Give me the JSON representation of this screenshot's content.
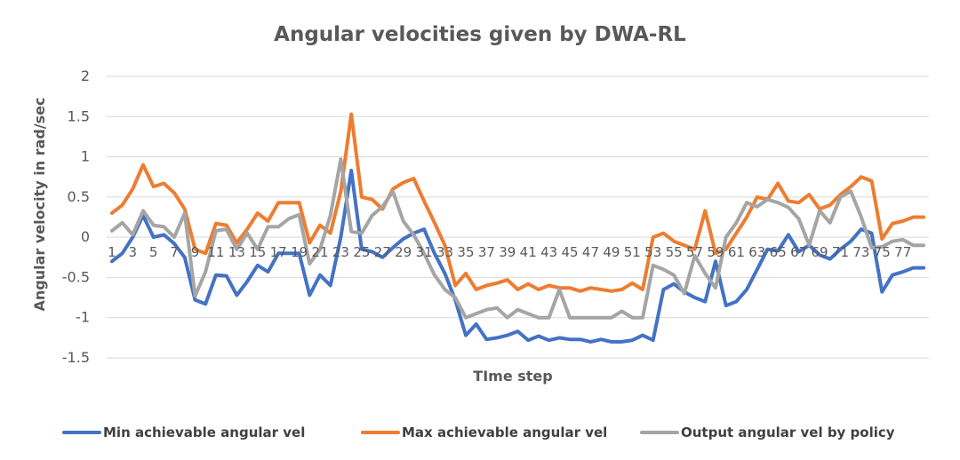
{
  "chart_data": {
    "type": "line",
    "title": "Angular velocities given by DWA-RL",
    "xlabel": "TIme step",
    "ylabel": "Angular velocity in rad/sec",
    "ylim": [
      -1.5,
      2
    ],
    "yticks": [
      "2",
      "1.5",
      "1",
      "0.5",
      "0",
      "-0.5",
      "-1",
      "-1.5"
    ],
    "ytick_values": [
      2,
      1.5,
      1,
      0.5,
      0,
      -0.5,
      -1,
      -1.5
    ],
    "x": [
      1,
      2,
      3,
      4,
      5,
      6,
      7,
      8,
      9,
      10,
      11,
      12,
      13,
      14,
      15,
      16,
      17,
      18,
      19,
      20,
      21,
      22,
      23,
      24,
      25,
      26,
      27,
      28,
      29,
      30,
      31,
      32,
      33,
      34,
      35,
      36,
      37,
      38,
      39,
      40,
      41,
      42,
      43,
      44,
      45,
      46,
      47,
      48,
      49,
      50,
      51,
      52,
      53,
      54,
      55,
      56,
      57,
      58,
      59,
      60,
      61,
      62,
      63,
      64,
      65,
      66,
      67,
      68,
      69,
      70,
      71,
      72,
      73,
      74,
      75,
      76,
      77,
      78,
      79
    ],
    "xtick_labels": [
      "1",
      "3",
      "5",
      "7",
      "9",
      "11",
      "13",
      "15",
      "17",
      "19",
      "21",
      "23",
      "25",
      "27",
      "29",
      "31",
      "33",
      "35",
      "37",
      "39",
      "41",
      "43",
      "45",
      "47",
      "49",
      "51",
      "53",
      "55",
      "57",
      "59",
      "61",
      "63",
      "65",
      "67",
      "69",
      "71",
      "73",
      "75",
      "77"
    ],
    "legend_position": "bottom",
    "grid": true,
    "series": [
      {
        "name": "Min achievable angular vel",
        "color": "#4472C4",
        "values": [
          -0.3,
          -0.2,
          0.0,
          0.27,
          0.0,
          0.03,
          -0.08,
          -0.25,
          -0.78,
          -0.83,
          -0.47,
          -0.48,
          -0.72,
          -0.55,
          -0.35,
          -0.43,
          -0.2,
          -0.2,
          -0.2,
          -0.72,
          -0.47,
          -0.6,
          0.0,
          0.83,
          -0.15,
          -0.18,
          -0.25,
          -0.13,
          -0.02,
          0.05,
          0.1,
          -0.2,
          -0.45,
          -0.78,
          -1.22,
          -1.08,
          -1.27,
          -1.25,
          -1.22,
          -1.17,
          -1.28,
          -1.23,
          -1.28,
          -1.25,
          -1.27,
          -1.27,
          -1.3,
          -1.27,
          -1.3,
          -1.3,
          -1.28,
          -1.22,
          -1.28,
          -0.65,
          -0.58,
          -0.68,
          -0.75,
          -0.8,
          -0.3,
          -0.85,
          -0.8,
          -0.65,
          -0.4,
          -0.15,
          -0.17,
          0.03,
          -0.18,
          -0.1,
          -0.22,
          -0.27,
          -0.15,
          -0.05,
          0.1,
          0.05,
          -0.68,
          -0.47,
          -0.43,
          -0.38,
          -0.38
        ]
      },
      {
        "name": "Max achievable  angular vel",
        "color": "#ED7D31",
        "values": [
          0.3,
          0.4,
          0.6,
          0.9,
          0.63,
          0.67,
          0.55,
          0.35,
          -0.15,
          -0.2,
          0.17,
          0.15,
          -0.07,
          0.1,
          0.3,
          0.2,
          0.43,
          0.43,
          0.43,
          -0.07,
          0.15,
          0.05,
          0.57,
          1.53,
          0.5,
          0.47,
          0.35,
          0.6,
          0.68,
          0.73,
          0.45,
          0.18,
          -0.1,
          -0.6,
          -0.45,
          -0.65,
          -0.6,
          -0.57,
          -0.53,
          -0.65,
          -0.58,
          -0.65,
          -0.6,
          -0.63,
          -0.63,
          -0.67,
          -0.63,
          -0.65,
          -0.67,
          -0.65,
          -0.57,
          -0.65,
          0.0,
          0.05,
          -0.05,
          -0.1,
          -0.15,
          0.33,
          -0.2,
          -0.15,
          0.05,
          0.25,
          0.5,
          0.47,
          0.67,
          0.45,
          0.43,
          0.53,
          0.35,
          0.4,
          0.53,
          0.63,
          0.75,
          0.7,
          -0.02,
          0.17,
          0.2,
          0.25,
          0.25
        ]
      },
      {
        "name": "Output angular vel by policy",
        "color": "#A5A5A5",
        "values": [
          0.08,
          0.18,
          0.03,
          0.33,
          0.15,
          0.13,
          0.0,
          0.3,
          -0.73,
          -0.43,
          0.08,
          0.1,
          -0.15,
          0.05,
          -0.15,
          0.13,
          0.13,
          0.23,
          0.28,
          -0.33,
          -0.15,
          0.27,
          0.97,
          0.07,
          0.05,
          0.27,
          0.38,
          0.57,
          0.2,
          0.03,
          -0.2,
          -0.47,
          -0.65,
          -0.75,
          -1.0,
          -0.95,
          -0.9,
          -0.88,
          -1.0,
          -0.9,
          -0.95,
          -1.0,
          -1.0,
          -0.65,
          -1.0,
          -1.0,
          -1.0,
          -1.0,
          -1.0,
          -0.92,
          -1.0,
          -1.0,
          -0.35,
          -0.4,
          -0.47,
          -0.7,
          -0.23,
          -0.45,
          -0.63,
          0.0,
          0.18,
          0.43,
          0.38,
          0.47,
          0.43,
          0.37,
          0.23,
          -0.1,
          0.33,
          0.18,
          0.5,
          0.57,
          0.25,
          -0.13,
          -0.12,
          -0.05,
          -0.03,
          -0.1,
          -0.1
        ]
      }
    ]
  }
}
